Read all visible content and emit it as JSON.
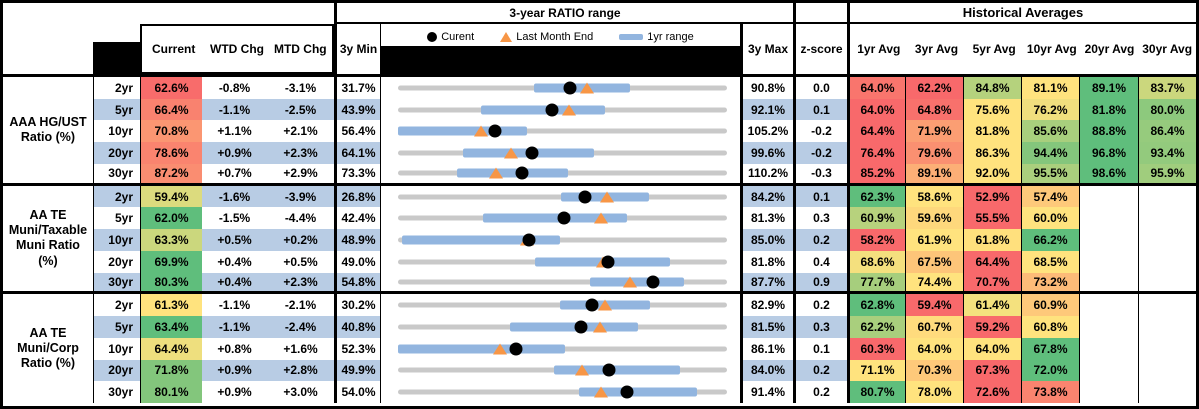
{
  "header": {
    "range_title": "3-year RATIO range",
    "historical_title": "Historical Averages",
    "current": "Current",
    "wtd": "WTD Chg",
    "mtd": "MTD Chg",
    "min3y": "3y Min",
    "max3y": "3y Max",
    "zscore": "z-score",
    "avg_cols": [
      "1yr Avg",
      "3yr Avg",
      "5yr Avg",
      "10yr Avg",
      "20yr Avg",
      "30yr Avg"
    ],
    "legend": {
      "current": "Curent",
      "last_month": "Last Month End",
      "range": "1yr range"
    }
  },
  "colors": {
    "stripe_blue": "#B8CCE4",
    "range_bar_blue": "#92B5DF",
    "track_gray": "#C9C9C9",
    "triangle_orange": "#F79646",
    "dot_black": "#000000",
    "scale_min_red": "#F8696B",
    "scale_mid_yellow": "#FFE37E",
    "scale_max_green": "#5FBE7C",
    "header_fill_black": "#000000"
  },
  "chart_data": {
    "type": "table",
    "title": "3-year RATIO range",
    "notes": "Each row's range chart spans 3y Min to 3y Max; blue bar = 1yr range, black dot = current, orange triangle = last month end. Historical average cells use a red-yellow-green scale per row.",
    "groups": [
      {
        "label": "AAA HG/UST\nRatio (%)",
        "rows": [
          {
            "tenor": "2yr",
            "current": 62.6,
            "wtd_chg": "-0.8%",
            "mtd_chg": "-3.1%",
            "min_3y": 31.7,
            "max_3y": 90.8,
            "z_score": "0.0",
            "yr1_range": [
              56.2,
              73.4
            ],
            "last_month_end": 65.7,
            "avgs": [
              64.0,
              62.2,
              84.8,
              81.1,
              89.1,
              83.7
            ]
          },
          {
            "tenor": "5yr",
            "current": 66.4,
            "wtd_chg": "-1.1%",
            "mtd_chg": "-2.5%",
            "min_3y": 43.9,
            "max_3y": 92.1,
            "z_score": "0.1",
            "yr1_range": [
              56.0,
              74.3
            ],
            "last_month_end": 68.9,
            "avgs": [
              64.0,
              64.8,
              75.6,
              76.2,
              81.8,
              80.0
            ]
          },
          {
            "tenor": "10yr",
            "current": 70.8,
            "wtd_chg": "+1.1%",
            "mtd_chg": "+2.1%",
            "min_3y": 56.4,
            "max_3y": 105.2,
            "z_score": "-0.2",
            "yr1_range": [
              56.4,
              75.6
            ],
            "last_month_end": 68.7,
            "avgs": [
              64.4,
              71.9,
              81.8,
              85.6,
              88.8,
              86.4
            ]
          },
          {
            "tenor": "20yr",
            "current": 78.6,
            "wtd_chg": "+0.9%",
            "mtd_chg": "+2.3%",
            "min_3y": 64.1,
            "max_3y": 99.6,
            "z_score": "-0.2",
            "yr1_range": [
              71.1,
              85.3
            ],
            "last_month_end": 76.3,
            "avgs": [
              76.4,
              79.6,
              86.3,
              94.4,
              96.8,
              93.4
            ]
          },
          {
            "tenor": "30yr",
            "current": 87.2,
            "wtd_chg": "+0.7%",
            "mtd_chg": "+2.9%",
            "min_3y": 73.3,
            "max_3y": 110.2,
            "z_score": "-0.3",
            "yr1_range": [
              79.9,
              92.4
            ],
            "last_month_end": 84.3,
            "avgs": [
              85.2,
              89.1,
              92.0,
              95.5,
              98.6,
              95.9
            ]
          }
        ]
      },
      {
        "label": "AA TE\nMuni/Taxable\nMuni Ratio\n(%)",
        "rows": [
          {
            "tenor": "2yr",
            "current": 59.4,
            "wtd_chg": "-1.6%",
            "mtd_chg": "-3.9%",
            "min_3y": 26.8,
            "max_3y": 84.2,
            "z_score": "0.1",
            "yr1_range": [
              55.2,
              70.7
            ],
            "last_month_end": 63.3,
            "avgs": [
              62.3,
              58.6,
              52.9,
              57.4,
              null,
              null
            ]
          },
          {
            "tenor": "5yr",
            "current": 62.0,
            "wtd_chg": "-1.5%",
            "mtd_chg": "-4.4%",
            "min_3y": 42.4,
            "max_3y": 81.3,
            "z_score": "0.3",
            "yr1_range": [
              52.4,
              69.5
            ],
            "last_month_end": 66.4,
            "avgs": [
              60.9,
              59.6,
              55.5,
              60.0,
              null,
              null
            ]
          },
          {
            "tenor": "10yr",
            "current": 63.3,
            "wtd_chg": "+0.5%",
            "mtd_chg": "+0.2%",
            "min_3y": 48.9,
            "max_3y": 85.0,
            "z_score": "0.2",
            "yr1_range": [
              49.3,
              66.7
            ],
            "last_month_end": 63.1,
            "avgs": [
              58.2,
              61.9,
              61.8,
              66.2,
              null,
              null
            ]
          },
          {
            "tenor": "20yr",
            "current": 69.9,
            "wtd_chg": "+0.4%",
            "mtd_chg": "+0.5%",
            "min_3y": 49.0,
            "max_3y": 81.8,
            "z_score": "0.4",
            "yr1_range": [
              62.7,
              76.1
            ],
            "last_month_end": 69.4,
            "avgs": [
              68.6,
              67.5,
              64.4,
              68.5,
              null,
              null
            ]
          },
          {
            "tenor": "30yr",
            "current": 80.3,
            "wtd_chg": "+0.4%",
            "mtd_chg": "+2.3%",
            "min_3y": 54.8,
            "max_3y": 87.7,
            "z_score": "0.9",
            "yr1_range": [
              74.0,
              83.4
            ],
            "last_month_end": 78.0,
            "avgs": [
              77.7,
              74.4,
              70.7,
              73.2,
              null,
              null
            ]
          }
        ]
      },
      {
        "label": "AA TE\nMuni/Corp\nRatio (%)",
        "rows": [
          {
            "tenor": "2yr",
            "current": 61.3,
            "wtd_chg": "-1.1%",
            "mtd_chg": "-2.1%",
            "min_3y": 30.2,
            "max_3y": 82.9,
            "z_score": "0.2",
            "yr1_range": [
              56.2,
              70.6
            ],
            "last_month_end": 63.4,
            "avgs": [
              62.8,
              59.4,
              61.4,
              60.9,
              null,
              null
            ]
          },
          {
            "tenor": "5yr",
            "current": 63.4,
            "wtd_chg": "-1.1%",
            "mtd_chg": "-2.4%",
            "min_3y": 40.8,
            "max_3y": 81.5,
            "z_score": "0.3",
            "yr1_range": [
              54.7,
              70.5
            ],
            "last_month_end": 65.8,
            "avgs": [
              62.2,
              60.7,
              59.2,
              60.8,
              null,
              null
            ]
          },
          {
            "tenor": "10yr",
            "current": 64.4,
            "wtd_chg": "+0.8%",
            "mtd_chg": "+1.6%",
            "min_3y": 52.3,
            "max_3y": 86.1,
            "z_score": "0.1",
            "yr1_range": [
              52.3,
              69.5
            ],
            "last_month_end": 62.8,
            "avgs": [
              60.3,
              64.0,
              64.0,
              67.8,
              null,
              null
            ]
          },
          {
            "tenor": "20yr",
            "current": 71.8,
            "wtd_chg": "+0.9%",
            "mtd_chg": "+2.8%",
            "min_3y": 49.9,
            "max_3y": 84.0,
            "z_score": "0.2",
            "yr1_range": [
              66.1,
              79.2
            ],
            "last_month_end": 69.0,
            "avgs": [
              71.1,
              70.3,
              67.3,
              72.0,
              null,
              null
            ]
          },
          {
            "tenor": "30yr",
            "current": 80.1,
            "wtd_chg": "+0.9%",
            "mtd_chg": "+3.0%",
            "min_3y": 54.0,
            "max_3y": 91.4,
            "z_score": "0.2",
            "yr1_range": [
              74.6,
              88.0
            ],
            "last_month_end": 77.1,
            "avgs": [
              80.7,
              78.0,
              72.6,
              73.8,
              null,
              null
            ]
          }
        ]
      }
    ]
  }
}
